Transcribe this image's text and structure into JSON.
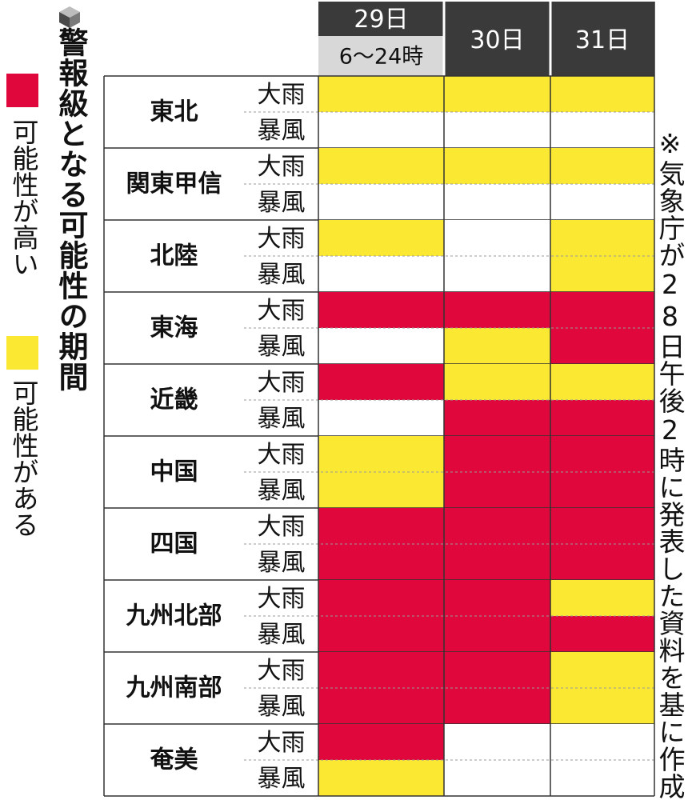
{
  "title": "警報級となる可能性の期間",
  "legend": {
    "high": "可能性が高い",
    "some": "可能性がある"
  },
  "note": "※気象庁が28日午後2時に発表した資料を基に作成",
  "colors": {
    "high": "#e0073c",
    "some": "#fbe832",
    "none": "#ffffff",
    "header_dark": "#3a3a3a",
    "header_light": "#d8d8d8"
  },
  "chart_data": {
    "type": "table",
    "columns": [
      {
        "label": "29日",
        "sublabel": "6〜24時"
      },
      {
        "label": "30日",
        "sublabel": ""
      },
      {
        "label": "31日",
        "sublabel": ""
      }
    ],
    "hazards": [
      "大雨",
      "暴風"
    ],
    "levels": {
      "high": "可能性が高い",
      "some": "可能性がある",
      "none": ""
    },
    "regions": [
      {
        "name": "東北",
        "rain": [
          "some",
          "some",
          "some"
        ],
        "wind": [
          "none",
          "none",
          "none"
        ]
      },
      {
        "name": "関東甲信",
        "rain": [
          "some",
          "some",
          "some"
        ],
        "wind": [
          "none",
          "none",
          "none"
        ]
      },
      {
        "name": "北陸",
        "rain": [
          "some",
          "none",
          "some"
        ],
        "wind": [
          "none",
          "none",
          "some"
        ]
      },
      {
        "name": "東海",
        "rain": [
          "high",
          "high",
          "high"
        ],
        "wind": [
          "none",
          "some",
          "high"
        ]
      },
      {
        "name": "近畿",
        "rain": [
          "high",
          "some",
          "some"
        ],
        "wind": [
          "none",
          "high",
          "high"
        ]
      },
      {
        "name": "中国",
        "rain": [
          "some",
          "high",
          "high"
        ],
        "wind": [
          "some",
          "high",
          "high"
        ]
      },
      {
        "name": "四国",
        "rain": [
          "high",
          "high",
          "high"
        ],
        "wind": [
          "high",
          "high",
          "high"
        ]
      },
      {
        "name": "九州北部",
        "rain": [
          "high",
          "high",
          "some"
        ],
        "wind": [
          "high",
          "high",
          "high"
        ]
      },
      {
        "name": "九州南部",
        "rain": [
          "high",
          "high",
          "some"
        ],
        "wind": [
          "high",
          "high",
          "some"
        ]
      },
      {
        "name": "奄美",
        "rain": [
          "high",
          "none",
          "none"
        ],
        "wind": [
          "some",
          "none",
          "none"
        ]
      }
    ]
  }
}
